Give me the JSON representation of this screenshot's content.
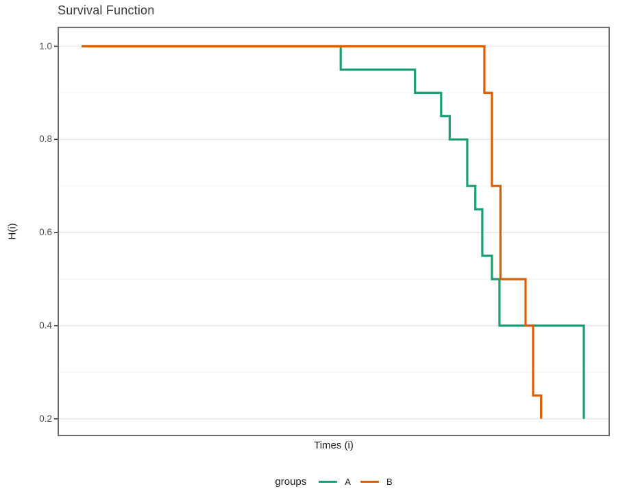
{
  "title": "Survival Function",
  "axes": {
    "x_title": "Times (i)",
    "y_title": "H(i)",
    "y_major_tick_labels": [
      "1.0",
      "0.8",
      "0.6",
      "0.4",
      "0.2"
    ],
    "y_major_values": [
      1.0,
      0.8,
      0.6,
      0.4,
      0.2
    ],
    "y_minor_values": [
      0.9,
      0.7,
      0.5,
      0.3
    ],
    "x_tick_labels_visible": false
  },
  "legend": {
    "title": "groups",
    "entries": [
      {
        "label": "A",
        "color": "#1B9E77"
      },
      {
        "label": "B",
        "color": "#D95F02"
      }
    ],
    "position": "bottom"
  },
  "colors": {
    "series_a": "#1B9E77",
    "series_b": "#D95F02",
    "panel_border": "#6e6e6e",
    "grid_major": "#e8e8e8",
    "grid_minor": "#f2f2f2",
    "tick_mark": "#333333",
    "tick_label": "#4d4d4d",
    "title_text": "#383838"
  },
  "chart_data": {
    "type": "line",
    "subtype": "step-survival",
    "title": "Survival Function",
    "xlabel": "Times (i)",
    "ylabel": "H(i)",
    "ylim": [
      0.16,
      1.04
    ],
    "yticks": [
      0.2,
      0.4,
      0.6,
      0.8,
      1.0
    ],
    "grid": "horizontal-only",
    "legend_position": "bottom",
    "x_axis_note": "no x tick labels shown; t is normalized 0-1 over the visible time range",
    "series": [
      {
        "name": "A",
        "color": "#1B9E77",
        "points": [
          [
            0.0,
            1.0
          ],
          [
            0.516,
            0.95
          ],
          [
            0.664,
            0.9
          ],
          [
            0.716,
            0.85
          ],
          [
            0.733,
            0.8
          ],
          [
            0.768,
            0.7
          ],
          [
            0.784,
            0.65
          ],
          [
            0.798,
            0.55
          ],
          [
            0.817,
            0.5
          ],
          [
            0.832,
            0.4
          ],
          [
            1.0,
            0.2
          ]
        ]
      },
      {
        "name": "B",
        "color": "#D95F02",
        "points": [
          [
            0.0,
            1.0
          ],
          [
            0.802,
            0.9
          ],
          [
            0.817,
            0.7
          ],
          [
            0.834,
            0.5
          ],
          [
            0.884,
            0.4
          ],
          [
            0.899,
            0.25
          ],
          [
            0.915,
            0.2
          ]
        ]
      }
    ]
  }
}
